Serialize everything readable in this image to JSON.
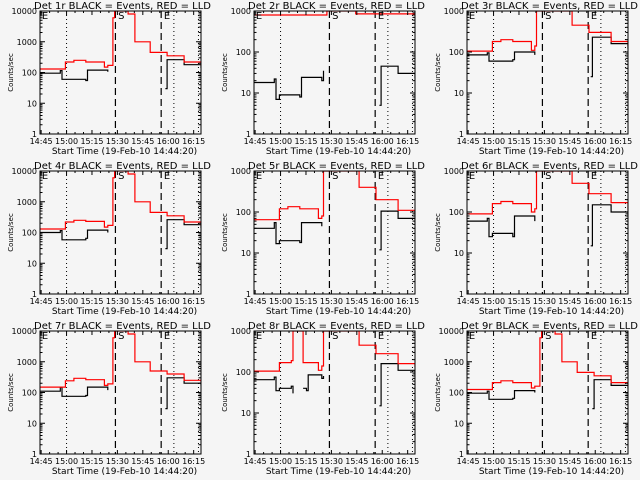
{
  "chart_data": {
    "type": "line",
    "layout": "3x3 grid",
    "shared": {
      "xlabel": "Start Time (19-Feb-10 14:44:20)",
      "ylabel": "Counts/sec",
      "yscale": "log",
      "x_range_minutes_after_1444": [
        0,
        95
      ],
      "x_ticks": [
        "14:45",
        "15:00",
        "15:15",
        "15:30",
        "15:45",
        "16:00",
        "16:15"
      ],
      "x_tick_minutes": [
        0.67,
        15.67,
        30.67,
        45.67,
        60.67,
        75.67,
        90.67
      ],
      "dotted_lines_min": [
        15.67,
        79.0,
        93.5
      ],
      "dashed_lines_min": [
        44.5,
        71.5
      ],
      "markers": [
        {
          "label": "E",
          "min": 0.5
        },
        {
          "label": "S",
          "min": 45.5
        },
        {
          "label": "E",
          "min": 72.5
        }
      ],
      "series_names": [
        "Events (black)",
        "LLD (red)"
      ],
      "colors": {
        "events": "#000000",
        "lld": "#ff0000"
      }
    },
    "panels": [
      {
        "title": "Det 1r BLACK = Events, RED = LLD",
        "ylim": [
          1,
          10000
        ],
        "yticks": [
          "1",
          "10",
          "100",
          "1000",
          "10000"
        ],
        "events": [
          [
            0,
            95
          ],
          [
            12,
            115
          ],
          [
            13,
            60
          ],
          [
            27,
            55
          ],
          [
            28,
            120
          ],
          [
            40,
            105
          ],
          [
            45,
            null
          ],
          [
            73,
            null
          ],
          [
            74,
            30
          ],
          [
            75,
            260
          ],
          [
            85,
            180
          ],
          [
            95,
            140
          ]
        ],
        "lld": [
          [
            0,
            130
          ],
          [
            15,
            220
          ],
          [
            20,
            250
          ],
          [
            27,
            220
          ],
          [
            38,
            150
          ],
          [
            40,
            170
          ],
          [
            43,
            6000
          ],
          [
            44,
            12000
          ],
          [
            50,
            12000
          ],
          [
            52,
            8000
          ],
          [
            56,
            1000
          ],
          [
            65,
            450
          ],
          [
            75,
            350
          ],
          [
            85,
            220
          ],
          [
            95,
            170
          ]
        ]
      },
      {
        "title": "Det 2r BLACK = Events, RED = LLD",
        "ylim": [
          1,
          1000
        ],
        "yticks": [
          "1",
          "10",
          "100",
          "1000"
        ],
        "events": [
          [
            0,
            18
          ],
          [
            12,
            22
          ],
          [
            13,
            7
          ],
          [
            15,
            9
          ],
          [
            27,
            8
          ],
          [
            28,
            24
          ],
          [
            40,
            20
          ],
          [
            41,
            35
          ],
          [
            45,
            null
          ],
          [
            73,
            null
          ],
          [
            74,
            5
          ],
          [
            75,
            45
          ],
          [
            85,
            30
          ],
          [
            95,
            23
          ]
        ],
        "lld": [
          [
            0,
            800
          ],
          [
            42,
            800
          ],
          [
            43,
            1000
          ],
          [
            58,
            1000
          ],
          [
            60,
            850
          ],
          [
            95,
            800
          ]
        ]
      },
      {
        "title": "Det 3r BLACK = Events, RED = LLD",
        "ylim": [
          1,
          1000
        ],
        "yticks": [
          "1",
          "10",
          "100",
          "1000"
        ],
        "events": [
          [
            0,
            85
          ],
          [
            12,
            95
          ],
          [
            13,
            60
          ],
          [
            27,
            65
          ],
          [
            28,
            100
          ],
          [
            40,
            85
          ],
          [
            42,
            null
          ],
          [
            72,
            null
          ],
          [
            73,
            25
          ],
          [
            74,
            230
          ],
          [
            85,
            160
          ],
          [
            95,
            120
          ]
        ],
        "lld": [
          [
            0,
            105
          ],
          [
            15,
            180
          ],
          [
            20,
            200
          ],
          [
            27,
            180
          ],
          [
            38,
            110
          ],
          [
            40,
            140
          ],
          [
            41,
            1000
          ],
          [
            59,
            1000
          ],
          [
            62,
            450
          ],
          [
            72,
            300
          ],
          [
            85,
            180
          ],
          [
            95,
            140
          ]
        ]
      },
      {
        "title": "Det 4r BLACK = Events, RED = LLD",
        "ylim": [
          1,
          10000
        ],
        "yticks": [
          "1",
          "10",
          "100",
          "1000",
          "10000"
        ],
        "events": [
          [
            0,
            100
          ],
          [
            12,
            115
          ],
          [
            13,
            58
          ],
          [
            27,
            65
          ],
          [
            28,
            120
          ],
          [
            40,
            100
          ],
          [
            45,
            null
          ],
          [
            73,
            null
          ],
          [
            74,
            30
          ],
          [
            75,
            260
          ],
          [
            85,
            180
          ],
          [
            95,
            140
          ]
        ],
        "lld": [
          [
            0,
            130
          ],
          [
            15,
            220
          ],
          [
            20,
            250
          ],
          [
            27,
            230
          ],
          [
            38,
            150
          ],
          [
            40,
            170
          ],
          [
            43,
            6000
          ],
          [
            44,
            12000
          ],
          [
            50,
            12000
          ],
          [
            52,
            8000
          ],
          [
            56,
            1000
          ],
          [
            65,
            450
          ],
          [
            75,
            350
          ],
          [
            85,
            220
          ],
          [
            95,
            170
          ]
        ]
      },
      {
        "title": "Det 5r BLACK = Events, RED = LLD",
        "ylim": [
          1,
          1000
        ],
        "yticks": [
          "1",
          "10",
          "100",
          "1000"
        ],
        "events": [
          [
            0,
            40
          ],
          [
            12,
            55
          ],
          [
            13,
            17
          ],
          [
            15,
            20
          ],
          [
            27,
            18
          ],
          [
            28,
            55
          ],
          [
            40,
            45
          ],
          [
            45,
            null
          ],
          [
            73,
            null
          ],
          [
            74,
            12
          ],
          [
            75,
            105
          ],
          [
            85,
            70
          ],
          [
            95,
            55
          ]
        ],
        "lld": [
          [
            0,
            65
          ],
          [
            15,
            120
          ],
          [
            20,
            135
          ],
          [
            27,
            120
          ],
          [
            38,
            70
          ],
          [
            40,
            80
          ],
          [
            41,
            1000
          ],
          [
            59,
            1000
          ],
          [
            62,
            400
          ],
          [
            72,
            200
          ],
          [
            85,
            110
          ],
          [
            95,
            88
          ]
        ]
      },
      {
        "title": "Det 6r BLACK = Events, RED = LLD",
        "ylim": [
          1,
          1000
        ],
        "yticks": [
          "1",
          "10",
          "100",
          "1000"
        ],
        "events": [
          [
            0,
            60
          ],
          [
            12,
            70
          ],
          [
            13,
            25
          ],
          [
            15,
            30
          ],
          [
            25,
            30
          ],
          [
            27,
            25
          ],
          [
            28,
            80
          ],
          [
            40,
            60
          ],
          [
            42,
            null
          ],
          [
            72,
            null
          ],
          [
            73,
            15
          ],
          [
            74,
            150
          ],
          [
            85,
            100
          ],
          [
            95,
            85
          ]
        ],
        "lld": [
          [
            0,
            90
          ],
          [
            15,
            160
          ],
          [
            20,
            180
          ],
          [
            27,
            160
          ],
          [
            38,
            100
          ],
          [
            40,
            120
          ],
          [
            41,
            1000
          ],
          [
            59,
            1000
          ],
          [
            62,
            500
          ],
          [
            72,
            280
          ],
          [
            85,
            170
          ],
          [
            95,
            110
          ]
        ]
      },
      {
        "title": "Det 7r BLACK = Events, RED = LLD",
        "ylim": [
          1,
          10000
        ],
        "yticks": [
          "1",
          "10",
          "100",
          "1000",
          "10000"
        ],
        "events": [
          [
            0,
            110
          ],
          [
            12,
            150
          ],
          [
            13,
            75
          ],
          [
            27,
            80
          ],
          [
            28,
            150
          ],
          [
            40,
            120
          ],
          [
            45,
            null
          ],
          [
            73,
            null
          ],
          [
            74,
            30
          ],
          [
            75,
            300
          ],
          [
            85,
            200
          ],
          [
            95,
            170
          ]
        ],
        "lld": [
          [
            0,
            150
          ],
          [
            15,
            240
          ],
          [
            20,
            290
          ],
          [
            27,
            260
          ],
          [
            38,
            170
          ],
          [
            40,
            190
          ],
          [
            43,
            6000
          ],
          [
            44,
            12000
          ],
          [
            50,
            12000
          ],
          [
            52,
            8000
          ],
          [
            56,
            1000
          ],
          [
            65,
            500
          ],
          [
            75,
            400
          ],
          [
            85,
            250
          ],
          [
            95,
            200
          ]
        ]
      },
      {
        "title": "Det 8r BLACK = Events, RED = LLD",
        "ylim": [
          1,
          1000
        ],
        "yticks": [
          "1",
          "10",
          "100",
          "1000"
        ],
        "events": [
          [
            0,
            65
          ],
          [
            12,
            75
          ],
          [
            13,
            35
          ],
          [
            15,
            40
          ],
          [
            22,
            45
          ],
          [
            23,
            30
          ],
          [
            28,
            null
          ],
          [
            29,
            40
          ],
          [
            31,
            35
          ],
          [
            32,
            85
          ],
          [
            40,
            70
          ],
          [
            41,
            80
          ],
          [
            45,
            null
          ],
          [
            73,
            null
          ],
          [
            74,
            15
          ],
          [
            75,
            160
          ],
          [
            85,
            110
          ],
          [
            95,
            85
          ]
        ],
        "lld": [
          [
            0,
            105
          ],
          [
            15,
            170
          ],
          [
            22,
            190
          ],
          [
            23,
            1000
          ],
          [
            28,
            1000
          ],
          [
            29,
            170
          ],
          [
            38,
            110
          ],
          [
            40,
            140
          ],
          [
            41,
            1000
          ],
          [
            59,
            1000
          ],
          [
            62,
            450
          ],
          [
            72,
            280
          ],
          [
            85,
            160
          ],
          [
            95,
            130
          ]
        ]
      },
      {
        "title": "Det 9r BLACK = Events, RED = LLD",
        "ylim": [
          1,
          10000
        ],
        "yticks": [
          "1",
          "10",
          "100",
          "1000",
          "10000"
        ],
        "events": [
          [
            0,
            95
          ],
          [
            12,
            110
          ],
          [
            13,
            60
          ],
          [
            27,
            65
          ],
          [
            28,
            115
          ],
          [
            40,
            100
          ],
          [
            45,
            null
          ],
          [
            73,
            null
          ],
          [
            74,
            30
          ],
          [
            75,
            260
          ],
          [
            85,
            170
          ],
          [
            95,
            135
          ]
        ],
        "lld": [
          [
            0,
            125
          ],
          [
            15,
            210
          ],
          [
            20,
            240
          ],
          [
            27,
            210
          ],
          [
            38,
            140
          ],
          [
            40,
            160
          ],
          [
            43,
            6000
          ],
          [
            44,
            12000
          ],
          [
            50,
            12000
          ],
          [
            52,
            8000
          ],
          [
            56,
            1000
          ],
          [
            65,
            450
          ],
          [
            75,
            350
          ],
          [
            85,
            210
          ],
          [
            95,
            165
          ]
        ]
      }
    ]
  }
}
